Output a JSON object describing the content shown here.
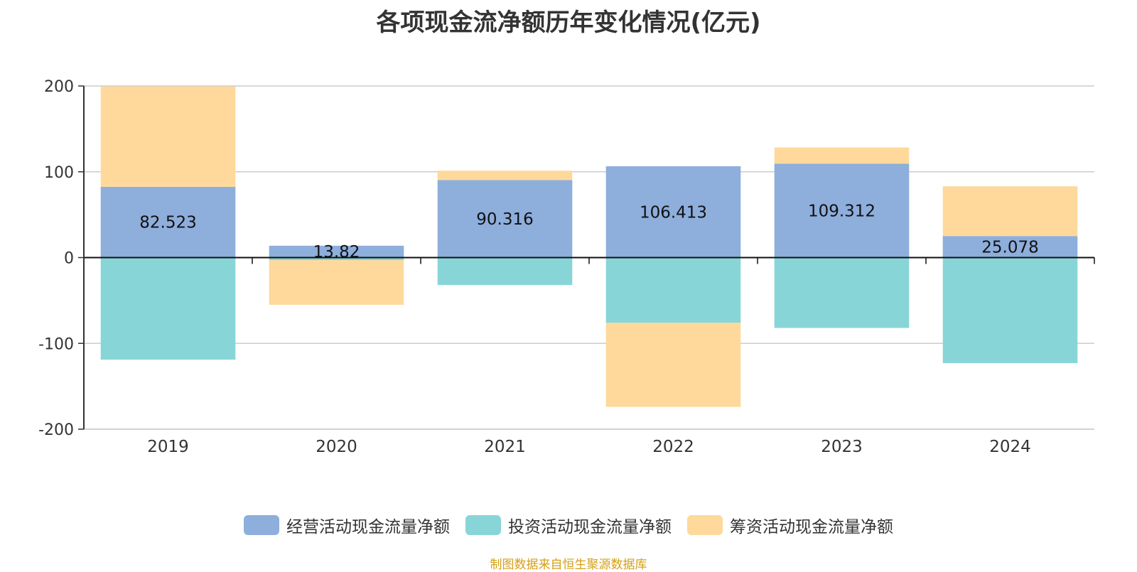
{
  "chart_data": {
    "type": "bar",
    "stacked": true,
    "title": "各项现金流净额历年变化情况(亿元)",
    "categories": [
      "2019",
      "2020",
      "2021",
      "2022",
      "2023",
      "2024"
    ],
    "ylim": [
      -200,
      200
    ],
    "yticks": [
      200,
      100,
      0,
      -100,
      -200
    ],
    "grid": true,
    "legend_position": "bottom",
    "series": [
      {
        "name": "经营活动现金流量净额",
        "color": "#8eaedc",
        "values": [
          82.523,
          13.82,
          90.316,
          106.413,
          109.312,
          25.078
        ],
        "labels": [
          "82.523",
          "13.82",
          "90.316",
          "106.413",
          "109.312",
          "25.078"
        ]
      },
      {
        "name": "投资活动现金流量净额",
        "color": "#88d5d8",
        "values": [
          -119,
          -3,
          -32,
          -76,
          -82,
          -123
        ]
      },
      {
        "name": "筹资活动现金流量净额",
        "color": "#fed99b",
        "values": [
          117,
          -52,
          11,
          -98,
          19,
          58
        ]
      }
    ]
  },
  "source": "制图数据来自恒生聚源数据库"
}
